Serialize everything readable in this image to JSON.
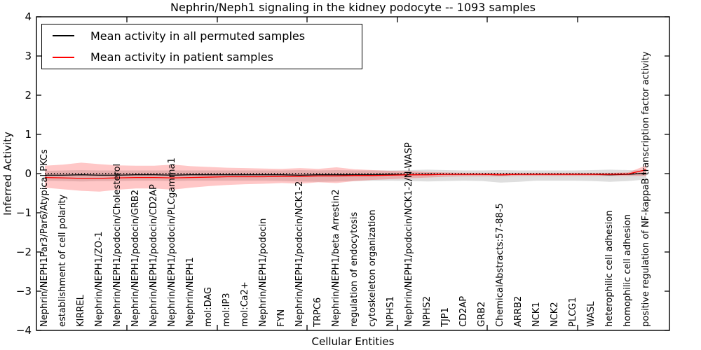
{
  "chart_data": {
    "type": "line",
    "title": "Nephrin/Neph1 signaling in the kidney podocyte -- 1093 samples",
    "xlabel": "Cellular Entities",
    "ylabel": "Inferred Activity",
    "ylim": [
      -4,
      4
    ],
    "yticks": [
      "4",
      "3",
      "2",
      "1",
      "0",
      "−1",
      "−2",
      "−3",
      "−4"
    ],
    "ytick_values": [
      4,
      3,
      2,
      1,
      0,
      -1,
      -2,
      -3,
      -4
    ],
    "grid": false,
    "zero_reference_line": {
      "y": 0,
      "style": "dotted",
      "color": "#000000"
    },
    "legend_position": "upper left",
    "categories": [
      "Nephrin/NEPH1Par3/Par6/Atypical PKCs",
      "establishment of cell polarity",
      "KIRREL",
      "Nephrin/NEPH1/ZO-1",
      "Nephrin/NEPH1/podocin/Cholesterol",
      "Nephrin/NEPH1/podocin/GRB2",
      "Nephrin/NEPH1/podocin/CD2AP",
      "Nephrin/NEPH1/podocin/PLCgamma1",
      "Nephrin/NEPH1",
      "mol:DAG",
      "mol:IP3",
      "mol:Ca2+",
      "Nephrin/NEPH1/podocin",
      "FYN",
      "Nephrin/NEPH1/podocin/NCK1-2",
      "TRPC6",
      "Nephrin/NEPH1/beta Arrestin2",
      "regulation of endocytosis",
      "cytoskeleton organization",
      "NPHS1",
      "Nephrin/NEPH1/podocin/NCK1-2/N-WASP",
      "NPHS2",
      "TJP1",
      "CD2AP",
      "GRB2",
      "ChemicalAbstracts:57-88-5",
      "ARRB2",
      "NCK1",
      "NCK2",
      "PLCG1",
      "WASL",
      "heterophilic cell adhesion",
      "homophilic cell adhesion",
      "positive regulation of NF-kappaB transcription factor activity"
    ],
    "series": [
      {
        "name": "Mean activity in all permuted samples",
        "color": "#000000",
        "values": [
          -0.04,
          -0.04,
          -0.03,
          -0.04,
          -0.04,
          -0.03,
          -0.03,
          -0.04,
          -0.03,
          -0.03,
          -0.03,
          -0.03,
          -0.03,
          -0.03,
          -0.04,
          -0.03,
          -0.03,
          -0.03,
          -0.03,
          -0.02,
          -0.03,
          -0.02,
          -0.02,
          -0.02,
          -0.02,
          -0.03,
          -0.02,
          -0.02,
          -0.02,
          -0.02,
          -0.02,
          -0.03,
          -0.02,
          0.01
        ]
      },
      {
        "name": "Mean activity in patient samples",
        "color": "#ff0000",
        "values": [
          -0.1,
          -0.11,
          -0.12,
          -0.12,
          -0.11,
          -0.1,
          -0.1,
          -0.11,
          -0.1,
          -0.09,
          -0.08,
          -0.08,
          -0.08,
          -0.07,
          -0.07,
          -0.06,
          -0.06,
          -0.05,
          -0.05,
          -0.04,
          -0.03,
          -0.03,
          -0.02,
          -0.02,
          -0.02,
          -0.03,
          -0.02,
          -0.02,
          -0.02,
          -0.02,
          -0.02,
          -0.02,
          -0.01,
          0.1
        ]
      }
    ],
    "bands": [
      {
        "name": "permuted samples range",
        "color": "#000000",
        "opacity": 0.13,
        "upper": [
          0.07,
          0.08,
          0.09,
          0.08,
          0.08,
          0.08,
          0.08,
          0.08,
          0.08,
          0.08,
          0.08,
          0.08,
          0.08,
          0.08,
          0.09,
          0.08,
          0.09,
          0.08,
          0.08,
          0.08,
          0.09,
          0.1,
          0.09,
          0.08,
          0.08,
          0.09,
          0.08,
          0.08,
          0.08,
          0.08,
          0.09,
          0.1,
          0.09,
          0.08
        ],
        "lower": [
          -0.18,
          -0.19,
          -0.2,
          -0.19,
          -0.19,
          -0.18,
          -0.18,
          -0.19,
          -0.18,
          -0.18,
          -0.18,
          -0.18,
          -0.18,
          -0.19,
          -0.2,
          -0.21,
          -0.2,
          -0.19,
          -0.18,
          -0.18,
          -0.19,
          -0.2,
          -0.19,
          -0.18,
          -0.19,
          -0.23,
          -0.21,
          -0.18,
          -0.18,
          -0.18,
          -0.19,
          -0.21,
          -0.19,
          -0.15
        ]
      },
      {
        "name": "patient samples range",
        "color": "#ff0000",
        "opacity": 0.22,
        "upper": [
          0.2,
          0.23,
          0.28,
          0.24,
          0.21,
          0.2,
          0.2,
          0.23,
          0.19,
          0.17,
          0.15,
          0.14,
          0.13,
          0.12,
          0.14,
          0.12,
          0.16,
          0.11,
          0.09,
          0.07,
          0.06,
          0.04,
          0.03,
          0.02,
          0.02,
          0.02,
          0.02,
          0.02,
          0.02,
          0.02,
          0.02,
          0.02,
          0.03,
          0.21
        ],
        "lower": [
          -0.36,
          -0.4,
          -0.44,
          -0.46,
          -0.41,
          -0.38,
          -0.38,
          -0.41,
          -0.36,
          -0.32,
          -0.29,
          -0.27,
          -0.26,
          -0.24,
          -0.26,
          -0.22,
          -0.24,
          -0.19,
          -0.16,
          -0.14,
          -0.12,
          -0.1,
          -0.08,
          -0.07,
          -0.07,
          -0.07,
          -0.06,
          -0.06,
          -0.06,
          -0.06,
          -0.06,
          -0.06,
          -0.06,
          -0.06
        ]
      }
    ]
  }
}
